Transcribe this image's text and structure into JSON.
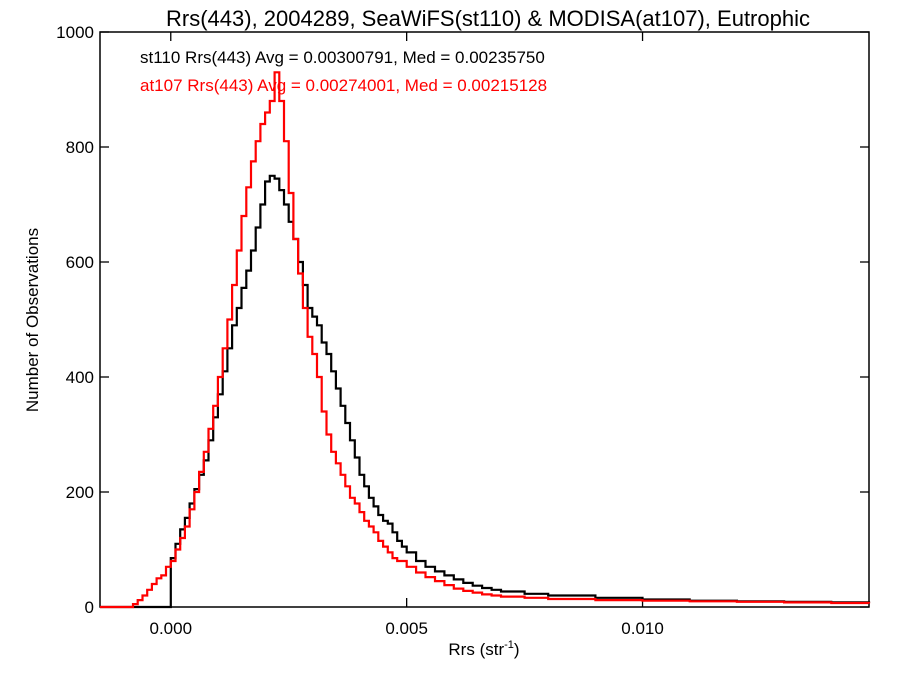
{
  "chart_data": {
    "type": "line",
    "title": "Rrs(443), 2004289, SeaWiFS(st110) & MODISA(at107), Eutrophic",
    "xlabel_main": "Rrs (str",
    "xlabel_sup": "-1",
    "xlabel_close": ")",
    "ylabel": "Number of Observations",
    "xlim": [
      -0.0015,
      0.0148
    ],
    "ylim": [
      0,
      1000
    ],
    "x_ticks": [
      {
        "value": 0.0,
        "label": "0.000"
      },
      {
        "value": 0.005,
        "label": "0.005"
      },
      {
        "value": 0.01,
        "label": "0.010"
      }
    ],
    "y_ticks": [
      {
        "value": 0,
        "label": "0"
      },
      {
        "value": 200,
        "label": "200"
      },
      {
        "value": 400,
        "label": "400"
      },
      {
        "value": 600,
        "label": "600"
      },
      {
        "value": 800,
        "label": "800"
      },
      {
        "value": 1000,
        "label": "1000"
      }
    ],
    "grid": false,
    "series": [
      {
        "id": "st110",
        "color": "#000000",
        "annotation": "st110 Rrs(443) Avg = 0.00300791, Med = 0.00235750",
        "points": [
          [
            -0.0015,
            0
          ],
          [
            0.0,
            0
          ],
          [
            0.0,
            85
          ],
          [
            0.0001,
            110
          ],
          [
            0.0002,
            135
          ],
          [
            0.0003,
            155
          ],
          [
            0.0004,
            180
          ],
          [
            0.0005,
            205
          ],
          [
            0.0006,
            230
          ],
          [
            0.0007,
            255
          ],
          [
            0.0008,
            290
          ],
          [
            0.0009,
            330
          ],
          [
            0.001,
            370
          ],
          [
            0.0011,
            410
          ],
          [
            0.0012,
            450
          ],
          [
            0.0013,
            490
          ],
          [
            0.0014,
            520
          ],
          [
            0.0015,
            555
          ],
          [
            0.0016,
            585
          ],
          [
            0.0017,
            620
          ],
          [
            0.0018,
            660
          ],
          [
            0.0019,
            700
          ],
          [
            0.002,
            740
          ],
          [
            0.0021,
            750
          ],
          [
            0.0022,
            745
          ],
          [
            0.0023,
            725
          ],
          [
            0.0024,
            700
          ],
          [
            0.0025,
            670
          ],
          [
            0.0026,
            640
          ],
          [
            0.0027,
            600
          ],
          [
            0.0028,
            560
          ],
          [
            0.0029,
            520
          ],
          [
            0.003,
            505
          ],
          [
            0.0031,
            490
          ],
          [
            0.0032,
            460
          ],
          [
            0.0033,
            440
          ],
          [
            0.0034,
            410
          ],
          [
            0.0035,
            380
          ],
          [
            0.0036,
            350
          ],
          [
            0.0037,
            320
          ],
          [
            0.0038,
            290
          ],
          [
            0.0039,
            260
          ],
          [
            0.004,
            230
          ],
          [
            0.0041,
            210
          ],
          [
            0.0042,
            190
          ],
          [
            0.0043,
            175
          ],
          [
            0.0044,
            160
          ],
          [
            0.0045,
            150
          ],
          [
            0.0046,
            145
          ],
          [
            0.0047,
            130
          ],
          [
            0.0048,
            115
          ],
          [
            0.0049,
            105
          ],
          [
            0.005,
            95
          ],
          [
            0.0052,
            80
          ],
          [
            0.0054,
            70
          ],
          [
            0.0056,
            62
          ],
          [
            0.0058,
            55
          ],
          [
            0.006,
            48
          ],
          [
            0.0062,
            42
          ],
          [
            0.0064,
            37
          ],
          [
            0.0066,
            33
          ],
          [
            0.0068,
            30
          ],
          [
            0.007,
            27
          ],
          [
            0.0075,
            23
          ],
          [
            0.008,
            20
          ],
          [
            0.009,
            16
          ],
          [
            0.01,
            13
          ],
          [
            0.011,
            11
          ],
          [
            0.012,
            10
          ],
          [
            0.013,
            9
          ],
          [
            0.014,
            8
          ],
          [
            0.0148,
            7
          ]
        ]
      },
      {
        "id": "at107",
        "color": "#ff0000",
        "annotation": "at107 Rrs(443) Avg = 0.00274001, Med = 0.00215128",
        "points": [
          [
            -0.0015,
            0
          ],
          [
            -0.0009,
            0
          ],
          [
            -0.0008,
            5
          ],
          [
            -0.0007,
            12
          ],
          [
            -0.0006,
            20
          ],
          [
            -0.0005,
            30
          ],
          [
            -0.0004,
            40
          ],
          [
            -0.0003,
            50
          ],
          [
            -0.0002,
            55
          ],
          [
            -0.0001,
            70
          ],
          [
            0.0,
            80
          ],
          [
            0.0001,
            100
          ],
          [
            0.0002,
            120
          ],
          [
            0.0003,
            140
          ],
          [
            0.0004,
            170
          ],
          [
            0.0005,
            200
          ],
          [
            0.0006,
            235
          ],
          [
            0.0007,
            270
          ],
          [
            0.0008,
            310
          ],
          [
            0.0009,
            350
          ],
          [
            0.001,
            400
          ],
          [
            0.0011,
            450
          ],
          [
            0.0012,
            500
          ],
          [
            0.0013,
            560
          ],
          [
            0.0014,
            620
          ],
          [
            0.0015,
            680
          ],
          [
            0.0016,
            730
          ],
          [
            0.0017,
            775
          ],
          [
            0.0018,
            810
          ],
          [
            0.0019,
            840
          ],
          [
            0.002,
            860
          ],
          [
            0.0021,
            880
          ],
          [
            0.0022,
            930
          ],
          [
            0.0023,
            880
          ],
          [
            0.0024,
            810
          ],
          [
            0.0025,
            720
          ],
          [
            0.0026,
            640
          ],
          [
            0.0027,
            580
          ],
          [
            0.0028,
            520
          ],
          [
            0.0029,
            470
          ],
          [
            0.003,
            440
          ],
          [
            0.0031,
            400
          ],
          [
            0.0032,
            340
          ],
          [
            0.0033,
            300
          ],
          [
            0.0034,
            270
          ],
          [
            0.0035,
            250
          ],
          [
            0.0036,
            230
          ],
          [
            0.0037,
            210
          ],
          [
            0.0038,
            190
          ],
          [
            0.0039,
            180
          ],
          [
            0.004,
            165
          ],
          [
            0.0041,
            150
          ],
          [
            0.0042,
            140
          ],
          [
            0.0043,
            130
          ],
          [
            0.0044,
            115
          ],
          [
            0.0045,
            105
          ],
          [
            0.0046,
            95
          ],
          [
            0.0047,
            85
          ],
          [
            0.0048,
            80
          ],
          [
            0.005,
            70
          ],
          [
            0.0052,
            60
          ],
          [
            0.0054,
            52
          ],
          [
            0.0056,
            45
          ],
          [
            0.0058,
            38
          ],
          [
            0.006,
            32
          ],
          [
            0.0062,
            28
          ],
          [
            0.0064,
            25
          ],
          [
            0.0066,
            22
          ],
          [
            0.0068,
            20
          ],
          [
            0.007,
            18
          ],
          [
            0.0075,
            16
          ],
          [
            0.008,
            14
          ],
          [
            0.009,
            12
          ],
          [
            0.01,
            11
          ],
          [
            0.011,
            10
          ],
          [
            0.012,
            9
          ],
          [
            0.013,
            8
          ],
          [
            0.014,
            7
          ],
          [
            0.0148,
            6
          ]
        ]
      }
    ]
  }
}
